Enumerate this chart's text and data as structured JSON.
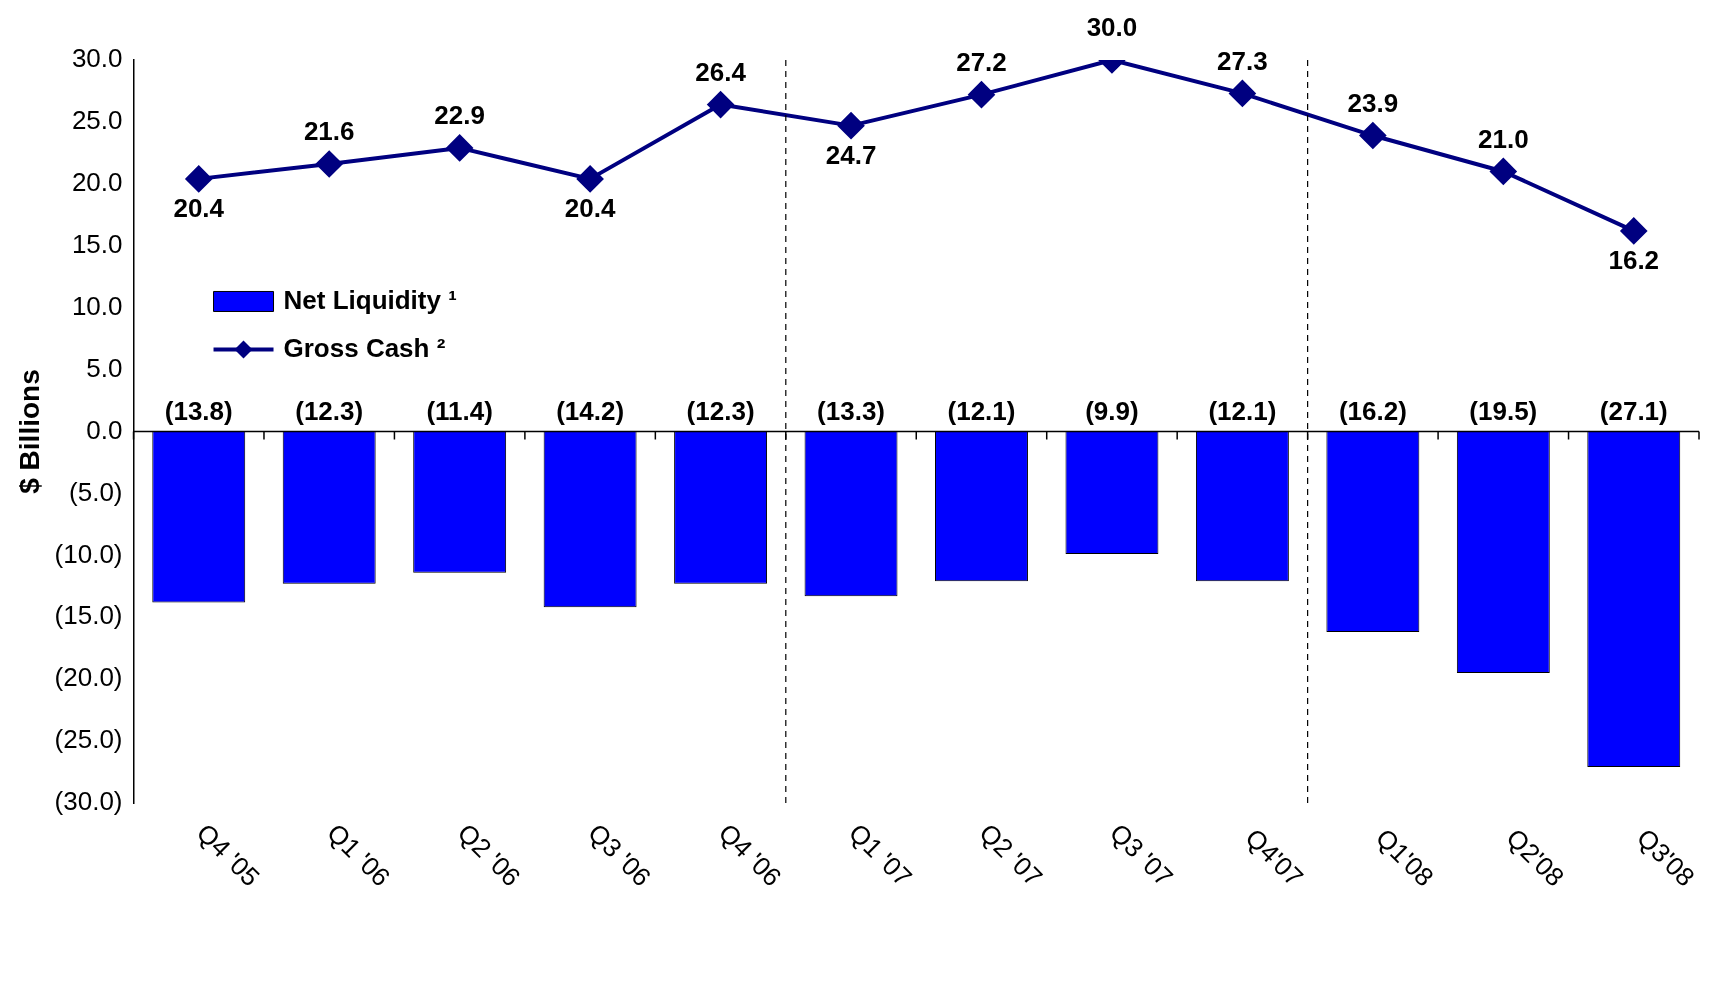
{
  "chart_data": {
    "type": "bar",
    "ylabel": "$ Billions",
    "categories": [
      "Q4 '05",
      "Q1 '06",
      "Q2 '06",
      "Q3 '06",
      "Q4 '06",
      "Q1 '07",
      "Q2 '07",
      "Q3 '07",
      "Q4'07",
      "Q1'08",
      "Q2'08",
      "Q3'08"
    ],
    "series": [
      {
        "name": "Net Liquidity ¹",
        "color": "#0000ff",
        "values": [
          -13.8,
          -12.3,
          -11.4,
          -14.2,
          -12.3,
          -13.3,
          -12.1,
          -9.9,
          -12.1,
          -16.2,
          -19.5,
          -27.1
        ],
        "value_labels": [
          "(13.8)",
          "(12.3)",
          "(11.4)",
          "(14.2)",
          "(12.3)",
          "(13.3)",
          "(12.1)",
          "(9.9)",
          "(12.1)",
          "(16.2)",
          "(19.5)",
          "(27.1)"
        ]
      },
      {
        "name": "Gross Cash ²",
        "type": "line",
        "color": "#000080",
        "marker": "diamond",
        "values": [
          20.4,
          21.6,
          22.9,
          20.4,
          26.4,
          24.7,
          27.2,
          30.0,
          27.3,
          23.9,
          21.0,
          16.2
        ],
        "value_labels": [
          "20.4",
          "21.6",
          "22.9",
          "20.4",
          "26.4",
          "24.7",
          "27.2",
          "30.0",
          "27.3",
          "23.9",
          "21.0",
          "16.2"
        ]
      }
    ],
    "ylim": [
      -30,
      30
    ],
    "yticks": [
      {
        "value": -30,
        "label": "(30.0)"
      },
      {
        "value": -25,
        "label": "(25.0)"
      },
      {
        "value": -20,
        "label": "(20.0)"
      },
      {
        "value": -15,
        "label": "(15.0)"
      },
      {
        "value": -10,
        "label": "(10.0)"
      },
      {
        "value": -5,
        "label": "(5.0)"
      },
      {
        "value": 0,
        "label": "0.0"
      },
      {
        "value": 5,
        "label": "5.0"
      },
      {
        "value": 10,
        "label": "10.0"
      },
      {
        "value": 15,
        "label": "15.0"
      },
      {
        "value": 20,
        "label": "20.0"
      },
      {
        "value": 25,
        "label": "25.0"
      },
      {
        "value": 30,
        "label": "30.0"
      }
    ],
    "legend": "left",
    "grid": false
  }
}
